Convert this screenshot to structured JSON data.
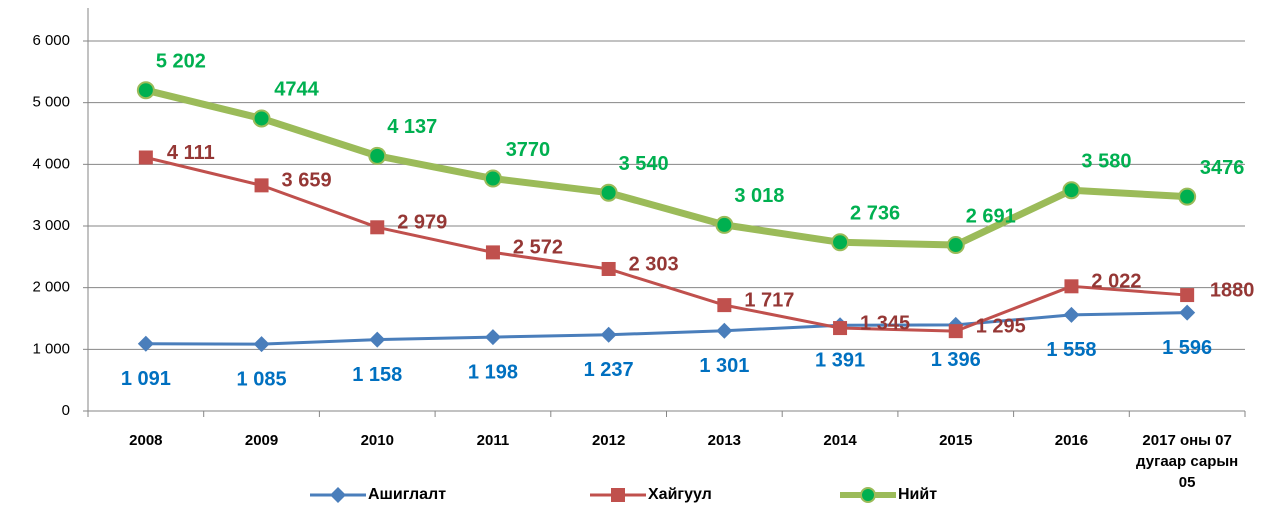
{
  "chart_data": {
    "type": "line",
    "categories": [
      "2008",
      "2009",
      "2010",
      "2011",
      "2012",
      "2013",
      "2014",
      "2015",
      "2016",
      "2017 оны 07 дугаар сарын 05"
    ],
    "series": [
      {
        "name": "Ашиглалт",
        "color": "#4a7ebb",
        "label_color": "#0070c0",
        "marker": "diamond",
        "values": [
          1091,
          1085,
          1158,
          1198,
          1237,
          1301,
          1391,
          1396,
          1558,
          1596
        ],
        "value_labels": [
          "1 091",
          "1 085",
          "1 158",
          "1 198",
          "1 237",
          "1 301",
          "1 391",
          "1 396",
          "1 558",
          "1 596"
        ]
      },
      {
        "name": "Хайгуул",
        "color": "#c0504d",
        "label_color": "#953735",
        "marker": "square",
        "values": [
          4111,
          3659,
          2979,
          2572,
          2303,
          1717,
          1345,
          1295,
          2022,
          1880
        ],
        "value_labels": [
          "4 111",
          "3 659",
          "2 979",
          "2 572",
          "2 303",
          "1 717",
          "1 345",
          "1 295",
          "2 022",
          "1880"
        ]
      },
      {
        "name": "Нийт",
        "color": "#9bbb59",
        "label_color": "#00b050",
        "marker": "circle",
        "marker_color": "#00b050",
        "values": [
          5202,
          4744,
          4137,
          3770,
          3540,
          3018,
          2736,
          2691,
          3580,
          3476
        ],
        "value_labels": [
          "5 202",
          "4744",
          "4 137",
          "3770",
          "3 540",
          "3 018",
          "2 736",
          "2 691",
          "3 580",
          "3476"
        ]
      }
    ],
    "ylim": [
      0,
      6000
    ],
    "yticks": [
      0,
      {
        "value": 1000,
        "label": "1 000"
      },
      {
        "value": 2000,
        "label": "2 000"
      },
      {
        "value": 3000,
        "label": "3 000"
      },
      {
        "value": 4000,
        "label": "4 000"
      },
      {
        "value": 5000,
        "label": "5 000"
      },
      {
        "value": 6000,
        "label": "6 000"
      }
    ],
    "grid": true,
    "legend": "bottom"
  }
}
